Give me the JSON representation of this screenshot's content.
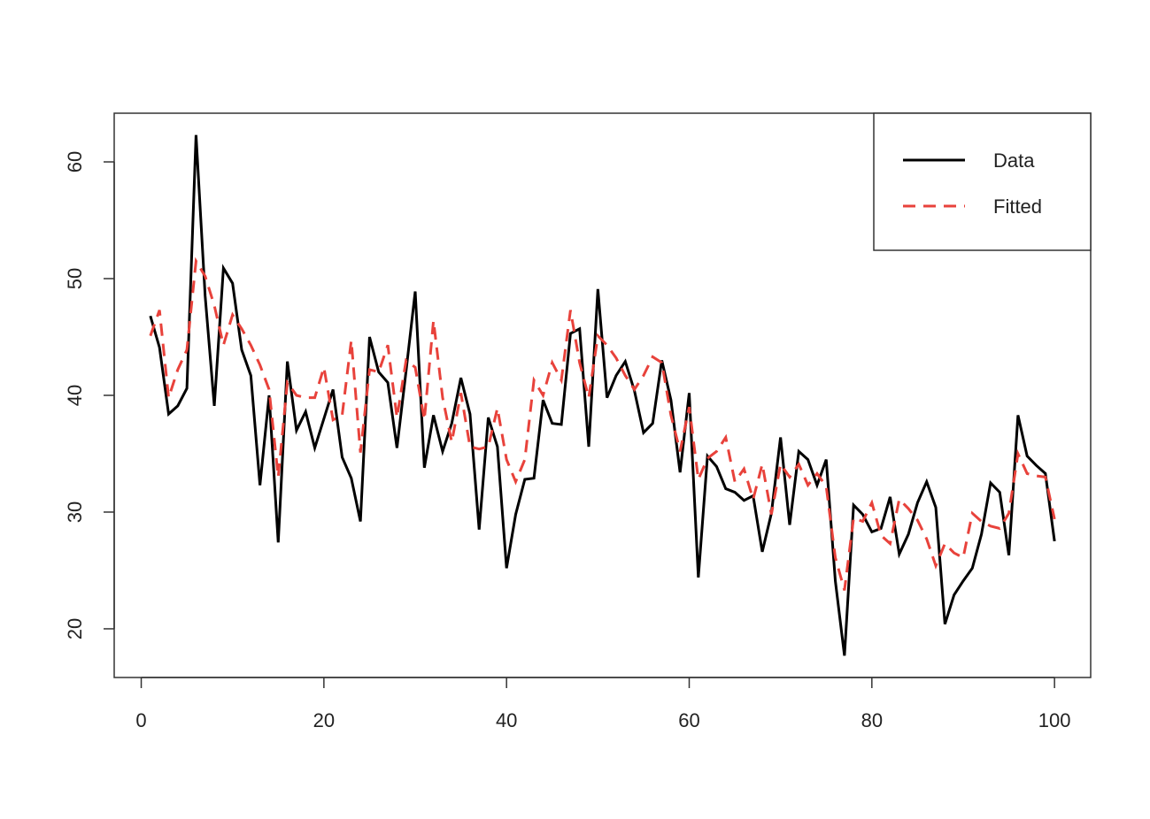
{
  "chart_data": {
    "type": "line",
    "x": [
      1,
      2,
      3,
      4,
      5,
      6,
      7,
      8,
      9,
      10,
      11,
      12,
      13,
      14,
      15,
      16,
      17,
      18,
      19,
      20,
      21,
      22,
      23,
      24,
      25,
      26,
      27,
      28,
      29,
      30,
      31,
      32,
      33,
      34,
      35,
      36,
      37,
      38,
      39,
      40,
      41,
      42,
      43,
      44,
      45,
      46,
      47,
      48,
      49,
      50,
      51,
      52,
      53,
      54,
      55,
      56,
      57,
      58,
      59,
      60,
      61,
      62,
      63,
      64,
      65,
      66,
      67,
      68,
      69,
      70,
      71,
      72,
      73,
      74,
      75,
      76,
      77,
      78,
      79,
      80,
      81,
      82,
      83,
      84,
      85,
      86,
      87,
      88,
      89,
      90,
      91,
      92,
      93,
      94,
      95,
      96,
      97,
      98,
      99,
      100
    ],
    "series": [
      {
        "name": "Data",
        "color": "#000000",
        "linestyle": "solid",
        "values": [
          46.8,
          44.1,
          38.4,
          39.1,
          40.6,
          62.3,
          48.5,
          39.1,
          50.9,
          49.6,
          43.9,
          41.7,
          32.3,
          40.0,
          27.4,
          42.9,
          37.0,
          38.6,
          35.5,
          38.0,
          40.5,
          34.7,
          32.9,
          29.2,
          45.0,
          42.0,
          41.1,
          35.5,
          42.1,
          48.9,
          33.8,
          38.3,
          35.2,
          37.6,
          41.5,
          38.4,
          28.5,
          38.1,
          35.6,
          25.2,
          29.8,
          32.8,
          32.9,
          39.6,
          37.6,
          37.5,
          45.3,
          45.7,
          35.6,
          49.1,
          39.8,
          41.7,
          42.9,
          40.4,
          36.8,
          37.6,
          43.0,
          39.6,
          33.4,
          40.2,
          24.4,
          34.8,
          33.9,
          32.0,
          31.7,
          31.0,
          31.4,
          26.6,
          29.9,
          36.4,
          28.9,
          35.2,
          34.5,
          32.3,
          34.5,
          24.1,
          17.7,
          30.6,
          29.8,
          28.3,
          28.6,
          31.3,
          26.4,
          28.1,
          30.8,
          32.6,
          30.4,
          20.4,
          22.9,
          24.1,
          25.2,
          28.1,
          32.5,
          31.7,
          26.3,
          38.3,
          34.8,
          34.0,
          33.3,
          27.5
        ]
      },
      {
        "name": "Fitted",
        "color": "#e8423b",
        "linestyle": "dashed",
        "values": [
          45.1,
          47.3,
          39.8,
          42.2,
          43.9,
          51.5,
          50.2,
          47.7,
          44.3,
          46.9,
          45.7,
          44.3,
          42.6,
          40.5,
          33.0,
          41.1,
          40.0,
          39.8,
          39.8,
          42.4,
          37.9,
          38.3,
          44.7,
          35.1,
          42.2,
          42.0,
          44.3,
          38.1,
          43.0,
          42.4,
          37.9,
          46.4,
          39.8,
          36.0,
          40.2,
          35.6,
          35.4,
          35.6,
          38.9,
          34.5,
          32.6,
          34.5,
          41.3,
          40.0,
          42.8,
          41.3,
          47.3,
          42.8,
          39.8,
          45.1,
          44.3,
          43.2,
          41.7,
          40.5,
          41.7,
          43.3,
          42.8,
          38.3,
          35.2,
          39.0,
          32.8,
          34.6,
          35.2,
          36.4,
          32.6,
          33.7,
          31.1,
          34.1,
          29.8,
          34.1,
          33.0,
          34.1,
          32.3,
          33.3,
          32.2,
          26.1,
          23.3,
          29.5,
          29.2,
          30.8,
          28.0,
          27.3,
          31.1,
          30.3,
          29.3,
          27.7,
          25.4,
          27.3,
          26.5,
          26.1,
          29.9,
          29.2,
          28.8,
          28.6,
          29.9,
          35.0,
          33.3,
          33.1,
          33.0,
          29.4
        ]
      }
    ],
    "xlim": [
      -2.96,
      103.96
    ],
    "ylim": [
      15.83,
      64.17
    ],
    "xticks": [
      0,
      20,
      40,
      60,
      80,
      100
    ],
    "yticks": [
      20,
      30,
      40,
      50,
      60
    ],
    "legend": "top-right"
  }
}
